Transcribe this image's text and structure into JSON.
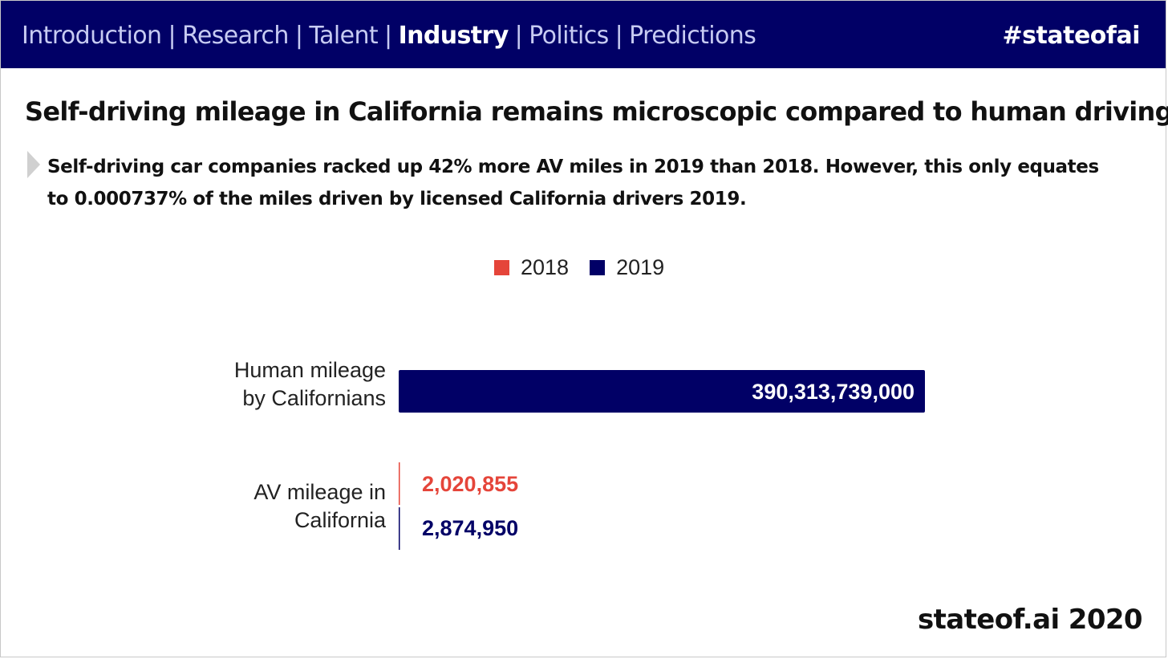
{
  "nav": {
    "items": [
      {
        "label": "Introduction",
        "active": false
      },
      {
        "label": "Research",
        "active": false
      },
      {
        "label": "Talent",
        "active": false
      },
      {
        "label": "Industry",
        "active": true
      },
      {
        "label": "Politics",
        "active": false
      },
      {
        "label": "Predictions",
        "active": false
      }
    ],
    "separator": "|",
    "hashtag": "#stateofai"
  },
  "slide": {
    "title": "Self-driving mileage in California remains microscopic compared to human driving",
    "bullet": "Self-driving car companies racked up 42% more AV miles in 2019 than 2018. However, this only equates to 0.000737% of the miles driven by licensed California drivers 2019.",
    "footer": "stateof.ai 2020"
  },
  "colors": {
    "navy": "#010066",
    "red": "#e5453a",
    "nav_text": "#c7cbf2"
  },
  "chart_data": {
    "type": "bar",
    "orientation": "horizontal",
    "categories": [
      [
        "Human mileage",
        "by Californians"
      ],
      [
        "AV mileage in",
        "California"
      ]
    ],
    "series": [
      {
        "name": "2018",
        "color": "#e5453a",
        "values": [
          null,
          2020855
        ],
        "labels": [
          null,
          "2,020,855"
        ]
      },
      {
        "name": "2019",
        "color": "#010066",
        "values": [
          390313739000,
          2874950
        ],
        "labels": [
          "390,313,739,000",
          "2,874,950"
        ]
      }
    ],
    "legend_position": "top",
    "grid": false
  }
}
